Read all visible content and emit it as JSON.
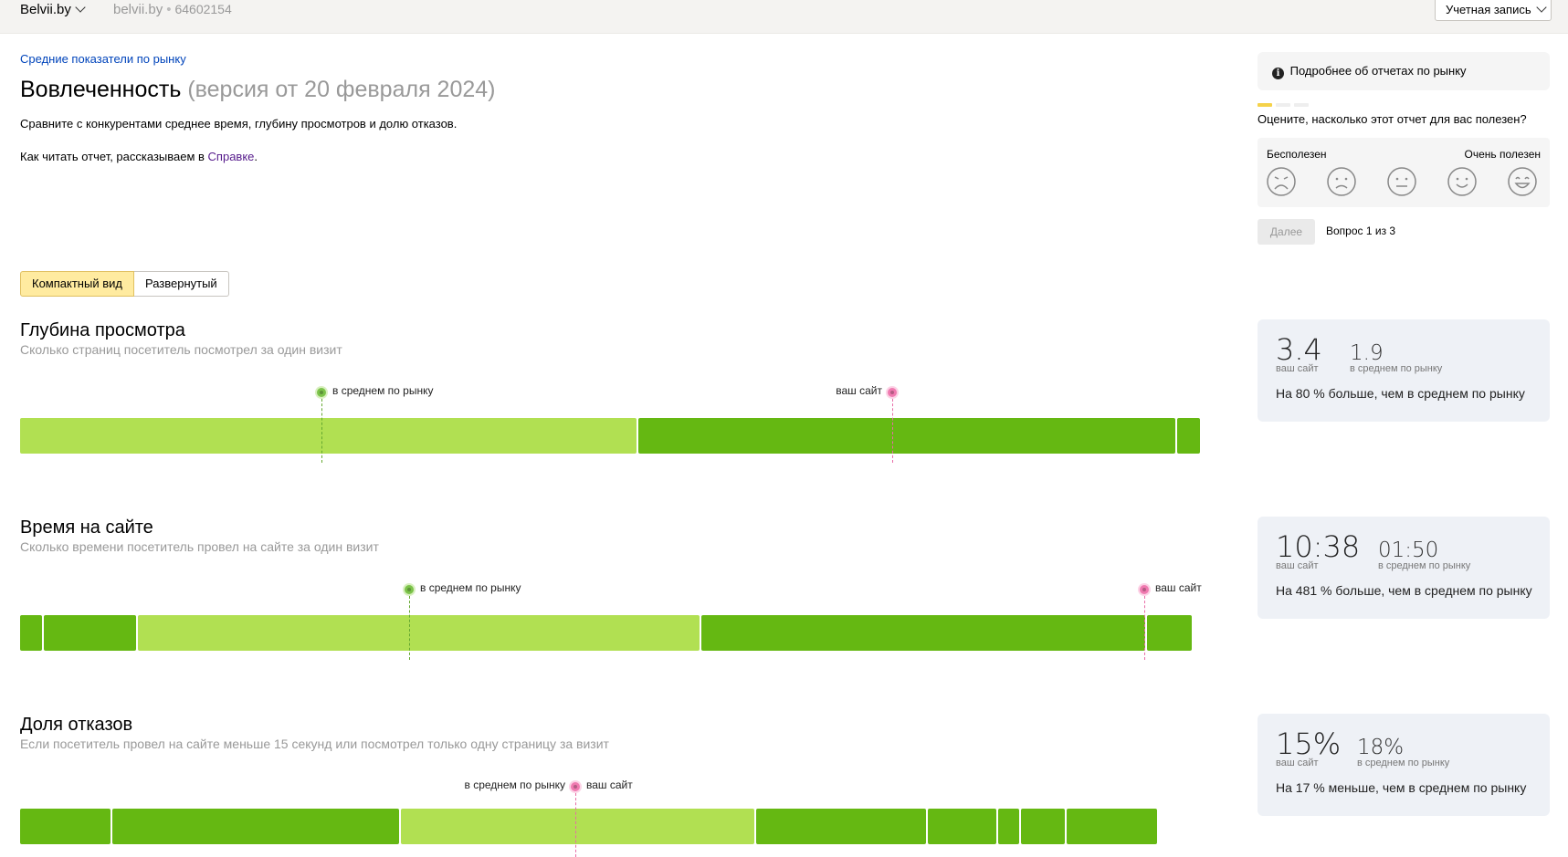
{
  "topbar": {
    "site_name": "Belvii.by",
    "counter_domain": "belvii.by",
    "counter_separator": "•",
    "counter_id": "64602154",
    "account_label": "Учетная запись"
  },
  "breadcrumb": "Средние показатели по рынку",
  "page": {
    "title": "Вовлеченность",
    "version": "(версия от 20 февраля 2024)",
    "description": "Сравните с конкурентами среднее время, глубину просмотров и долю отказов.",
    "help_prefix": "Как читать отчет, рассказываем в ",
    "help_link": "Справке",
    "help_suffix": "."
  },
  "view_toggle": {
    "compact": "Компактный вид",
    "expanded": "Развернутый",
    "active": "compact"
  },
  "feedback": {
    "info_label": "Подробнее об отчетах по рынку",
    "info_icon": "info-icon",
    "question": "Оцените, насколько этот отчет для вас полезен?",
    "low_label": "Бесполезен",
    "high_label": "Очень полезен",
    "faces": [
      "very-sad-face-icon",
      "sad-face-icon",
      "neutral-face-icon",
      "smile-face-icon",
      "big-smile-face-icon"
    ],
    "next_label": "Далее",
    "question_count": "Вопрос 1 из 3",
    "progress_done": 1,
    "progress_total": 3
  },
  "colors": {
    "segment_light": "#b1e052",
    "segment_dark": "#65b812",
    "market_marker": "#7cc34a",
    "site_marker": "#f07ab0"
  },
  "metrics": [
    {
      "title": "Глубина просмотра",
      "subtitle": "Сколько страниц посетитель посмотрел за один визит",
      "market_label": "в среднем по рынку",
      "site_label": "ваш сайт",
      "site_value": "3.4",
      "site_value_label": "ваш сайт",
      "market_value": "1.9",
      "market_value_label": "в среднем по рынку",
      "comparison": "На 80 % больше, чем в среднем по рынку"
    },
    {
      "title": "Время на сайте",
      "subtitle": "Сколько времени посетитель провел на сайте за один визит",
      "market_label": "в среднем по рынку",
      "site_label": "ваш сайт",
      "site_value": "10:38",
      "site_value_label": "ваш сайт",
      "market_value": "01:50",
      "market_value_label": "в среднем по рынку",
      "comparison": "На 481 % больше, чем в среднем по рынку"
    },
    {
      "title": "Доля отказов",
      "subtitle": "Если посетитель провел на сайте меньше 15 секунд или посмотрел только одну страницу за визит",
      "market_label": "в среднем по рынку",
      "site_label": "ваш сайт",
      "site_value": "15%",
      "site_value_label": "ваш сайт",
      "market_value": "18%",
      "market_value_label": "в среднем по рынку",
      "comparison": "На 17 % меньше, чем в среднем по рынку"
    }
  ]
}
